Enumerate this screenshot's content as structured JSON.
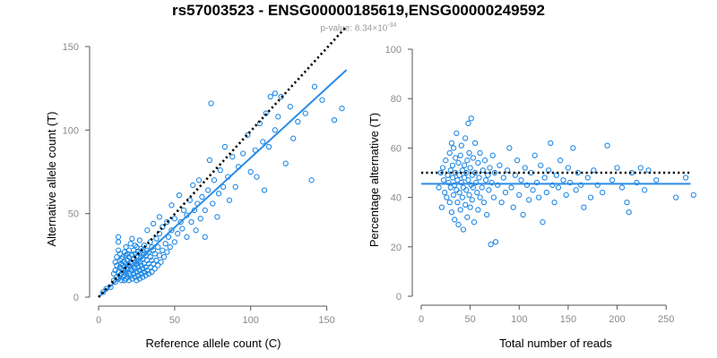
{
  "header": {
    "title": "rs57003523 - ENSG00000185619,ENSG00000249592",
    "pvalue_prefix": "p-value: 8.34×10",
    "pvalue_exp": "-34"
  },
  "colors": {
    "points": "#1E88E5",
    "fit": "#2B8CE6",
    "reference": "#000000"
  },
  "chart_data": [
    {
      "type": "scatter",
      "title": "",
      "xlabel": "Reference allele count (C)",
      "ylabel": "Alternative allele count (T)",
      "xlim": [
        0,
        165
      ],
      "ylim": [
        0,
        150
      ],
      "xticks": [
        "0",
        "50",
        "100",
        "150"
      ],
      "yticks": [
        "0",
        "50",
        "100",
        "150"
      ],
      "reference_line": {
        "style": "dotted",
        "x": [
          0,
          163
        ],
        "y": [
          0,
          162
        ]
      },
      "fit_line": {
        "style": "solid",
        "x": [
          0,
          163
        ],
        "y": [
          0,
          136
        ]
      },
      "points": [
        [
          3,
          3
        ],
        [
          5,
          5
        ],
        [
          8,
          6
        ],
        [
          10,
          10
        ],
        [
          10,
          14
        ],
        [
          11,
          9
        ],
        [
          11,
          16
        ],
        [
          11,
          21
        ],
        [
          12,
          12
        ],
        [
          12,
          19
        ],
        [
          12,
          24
        ],
        [
          13,
          11
        ],
        [
          13,
          15
        ],
        [
          13,
          28
        ],
        [
          13,
          33
        ],
        [
          13,
          36
        ],
        [
          14,
          13
        ],
        [
          14,
          18
        ],
        [
          14,
          22
        ],
        [
          14,
          26
        ],
        [
          15,
          10
        ],
        [
          15,
          14
        ],
        [
          15,
          17
        ],
        [
          15,
          20
        ],
        [
          15,
          23
        ],
        [
          16,
          12
        ],
        [
          16,
          16
        ],
        [
          16,
          19
        ],
        [
          16,
          24
        ],
        [
          17,
          10
        ],
        [
          17,
          13
        ],
        [
          17,
          18
        ],
        [
          17,
          21
        ],
        [
          17,
          27
        ],
        [
          18,
          11
        ],
        [
          18,
          15
        ],
        [
          18,
          20
        ],
        [
          18,
          25
        ],
        [
          18,
          30
        ],
        [
          19,
          12
        ],
        [
          19,
          17
        ],
        [
          19,
          22
        ],
        [
          19,
          26
        ],
        [
          20,
          10
        ],
        [
          20,
          14
        ],
        [
          20,
          19
        ],
        [
          20,
          24
        ],
        [
          20,
          28
        ],
        [
          21,
          13
        ],
        [
          21,
          17
        ],
        [
          21,
          21
        ],
        [
          21,
          32
        ],
        [
          22,
          11
        ],
        [
          22,
          16
        ],
        [
          22,
          20
        ],
        [
          22,
          25
        ],
        [
          22,
          35
        ],
        [
          23,
          14
        ],
        [
          23,
          18
        ],
        [
          23,
          23
        ],
        [
          23,
          28
        ],
        [
          24,
          12
        ],
        [
          24,
          17
        ],
        [
          24,
          21
        ],
        [
          24,
          26
        ],
        [
          24,
          31
        ],
        [
          25,
          10
        ],
        [
          25,
          15
        ],
        [
          25,
          20
        ],
        [
          25,
          24
        ],
        [
          25,
          30
        ],
        [
          26,
          13
        ],
        [
          26,
          18
        ],
        [
          26,
          22
        ],
        [
          26,
          27
        ],
        [
          27,
          11
        ],
        [
          27,
          16
        ],
        [
          27,
          21
        ],
        [
          27,
          26
        ],
        [
          27,
          34
        ],
        [
          28,
          14
        ],
        [
          28,
          19
        ],
        [
          28,
          24
        ],
        [
          28,
          29
        ],
        [
          29,
          12
        ],
        [
          29,
          17
        ],
        [
          29,
          23
        ],
        [
          29,
          28
        ],
        [
          30,
          15
        ],
        [
          30,
          20
        ],
        [
          30,
          26
        ],
        [
          30,
          31
        ],
        [
          31,
          13
        ],
        [
          31,
          18
        ],
        [
          31,
          25
        ],
        [
          32,
          16
        ],
        [
          32,
          22
        ],
        [
          32,
          28
        ],
        [
          32,
          40
        ],
        [
          33,
          14
        ],
        [
          33,
          20
        ],
        [
          33,
          27
        ],
        [
          34,
          18
        ],
        [
          34,
          24
        ],
        [
          34,
          33
        ],
        [
          35,
          15
        ],
        [
          35,
          22
        ],
        [
          35,
          30
        ],
        [
          36,
          20
        ],
        [
          36,
          28
        ],
        [
          36,
          44
        ],
        [
          37,
          17
        ],
        [
          37,
          26
        ],
        [
          38,
          22
        ],
        [
          38,
          35
        ],
        [
          39,
          19
        ],
        [
          39,
          30
        ],
        [
          40,
          25
        ],
        [
          40,
          38
        ],
        [
          40,
          48
        ],
        [
          41,
          21
        ],
        [
          42,
          28
        ],
        [
          42,
          42
        ],
        [
          43,
          24
        ],
        [
          44,
          32
        ],
        [
          45,
          27
        ],
        [
          45,
          45
        ],
        [
          46,
          36
        ],
        [
          47,
          30
        ],
        [
          48,
          40
        ],
        [
          48,
          55
        ],
        [
          50,
          33
        ],
        [
          50,
          47
        ],
        [
          52,
          38
        ],
        [
          53,
          61
        ],
        [
          54,
          45
        ],
        [
          55,
          41
        ],
        [
          56,
          52
        ],
        [
          58,
          36
        ],
        [
          58,
          49
        ],
        [
          60,
          58
        ],
        [
          61,
          45
        ],
        [
          62,
          67
        ],
        [
          63,
          52
        ],
        [
          64,
          40
        ],
        [
          65,
          56
        ],
        [
          66,
          70
        ],
        [
          67,
          47
        ],
        [
          68,
          60
        ],
        [
          70,
          36
        ],
        [
          70,
          52
        ],
        [
          72,
          64
        ],
        [
          73,
          82
        ],
        [
          74,
          116
        ],
        [
          75,
          56
        ],
        [
          76,
          70
        ],
        [
          78,
          48
        ],
        [
          79,
          62
        ],
        [
          80,
          76
        ],
        [
          82,
          66
        ],
        [
          83,
          90
        ],
        [
          85,
          72
        ],
        [
          86,
          58
        ],
        [
          88,
          84
        ],
        [
          90,
          66
        ],
        [
          92,
          78
        ],
        [
          95,
          86
        ],
        [
          98,
          97
        ],
        [
          100,
          75
        ],
        [
          103,
          88
        ],
        [
          104,
          72
        ],
        [
          106,
          104
        ],
        [
          108,
          93
        ],
        [
          109,
          64
        ],
        [
          110,
          110
        ],
        [
          112,
          90
        ],
        [
          113,
          120
        ],
        [
          116,
          100
        ],
        [
          118,
          108
        ],
        [
          120,
          120
        ],
        [
          123,
          80
        ],
        [
          126,
          114
        ],
        [
          128,
          95
        ],
        [
          131,
          105
        ],
        [
          136,
          110
        ],
        [
          140,
          70
        ],
        [
          142,
          126
        ],
        [
          147,
          118
        ],
        [
          155,
          106
        ],
        [
          160,
          113
        ],
        [
          116,
          122
        ]
      ]
    },
    {
      "type": "scatter",
      "title": "",
      "xlabel": "Total number of reads",
      "ylabel": "Percentage alternative (T)",
      "xlim": [
        0,
        280
      ],
      "ylim": [
        0,
        100
      ],
      "xticks": [
        "0",
        "50",
        "100",
        "150",
        "200",
        "250"
      ],
      "yticks": [
        "0",
        "20",
        "40",
        "60",
        "80",
        "100"
      ],
      "reference_line": {
        "style": "dotted",
        "x": [
          0,
          275
        ],
        "y": [
          50,
          50
        ]
      },
      "fit_line": {
        "style": "solid",
        "x": [
          0,
          275
        ],
        "y": [
          45.5,
          45.5
        ]
      },
      "points": [
        [
          18,
          44
        ],
        [
          20,
          50
        ],
        [
          21,
          36
        ],
        [
          22,
          52
        ],
        [
          23,
          47
        ],
        [
          24,
          42
        ],
        [
          25,
          55
        ],
        [
          26,
          40
        ],
        [
          27,
          49
        ],
        [
          28,
          46
        ],
        [
          29,
          58
        ],
        [
          29,
          38
        ],
        [
          30,
          51
        ],
        [
          30,
          44
        ],
        [
          31,
          62
        ],
        [
          31,
          34
        ],
        [
          32,
          48
        ],
        [
          32,
          53
        ],
        [
          33,
          41
        ],
        [
          33,
          60
        ],
        [
          34,
          45
        ],
        [
          34,
          31
        ],
        [
          35,
          50
        ],
        [
          35,
          56
        ],
        [
          36,
          43
        ],
        [
          36,
          66
        ],
        [
          37,
          47
        ],
        [
          37,
          38
        ],
        [
          38,
          54
        ],
        [
          38,
          29
        ],
        [
          39,
          49
        ],
        [
          39,
          42
        ],
        [
          40,
          57
        ],
        [
          40,
          35
        ],
        [
          41,
          46
        ],
        [
          41,
          61
        ],
        [
          42,
          51
        ],
        [
          42,
          40
        ],
        [
          43,
          44
        ],
        [
          43,
          27
        ],
        [
          44,
          53
        ],
        [
          44,
          48
        ],
        [
          45,
          37
        ],
        [
          45,
          64
        ],
        [
          46,
          50
        ],
        [
          46,
          43
        ],
        [
          47,
          55
        ],
        [
          47,
          32
        ],
        [
          48,
          47
        ],
        [
          48,
          70
        ],
        [
          49,
          41
        ],
        [
          49,
          58
        ],
        [
          50,
          52
        ],
        [
          50,
          36
        ],
        [
          51,
          45
        ],
        [
          51,
          72
        ],
        [
          52,
          49
        ],
        [
          52,
          39
        ],
        [
          53,
          56
        ],
        [
          53,
          44
        ],
        [
          54,
          30
        ],
        [
          55,
          50
        ],
        [
          55,
          62
        ],
        [
          56,
          46
        ],
        [
          57,
          42
        ],
        [
          58,
          54
        ],
        [
          58,
          35
        ],
        [
          59,
          48
        ],
        [
          60,
          40
        ],
        [
          60,
          58
        ],
        [
          62,
          44
        ],
        [
          63,
          51
        ],
        [
          64,
          38
        ],
        [
          65,
          55
        ],
        [
          66,
          47
        ],
        [
          67,
          33
        ],
        [
          68,
          49
        ],
        [
          69,
          43
        ],
        [
          70,
          52
        ],
        [
          71,
          21
        ],
        [
          72,
          46
        ],
        [
          73,
          57
        ],
        [
          74,
          40
        ],
        [
          75,
          50
        ],
        [
          76,
          22
        ],
        [
          78,
          45
        ],
        [
          80,
          53
        ],
        [
          82,
          38
        ],
        [
          84,
          48
        ],
        [
          86,
          42
        ],
        [
          88,
          51
        ],
        [
          90,
          60
        ],
        [
          92,
          44
        ],
        [
          94,
          36
        ],
        [
          96,
          49
        ],
        [
          98,
          55
        ],
        [
          100,
          41
        ],
        [
          102,
          47
        ],
        [
          104,
          33
        ],
        [
          106,
          52
        ],
        [
          108,
          45
        ],
        [
          110,
          39
        ],
        [
          112,
          50
        ],
        [
          114,
          43
        ],
        [
          116,
          57
        ],
        [
          118,
          46
        ],
        [
          120,
          40
        ],
        [
          122,
          53
        ],
        [
          124,
          30
        ],
        [
          126,
          48
        ],
        [
          128,
          42
        ],
        [
          130,
          51
        ],
        [
          132,
          62
        ],
        [
          134,
          45
        ],
        [
          136,
          38
        ],
        [
          138,
          49
        ],
        [
          140,
          44
        ],
        [
          142,
          55
        ],
        [
          145,
          47
        ],
        [
          148,
          41
        ],
        [
          150,
          52
        ],
        [
          152,
          46
        ],
        [
          155,
          60
        ],
        [
          158,
          43
        ],
        [
          160,
          50
        ],
        [
          163,
          45
        ],
        [
          166,
          36
        ],
        [
          170,
          48
        ],
        [
          173,
          40
        ],
        [
          176,
          51
        ],
        [
          180,
          45
        ],
        [
          185,
          42
        ],
        [
          190,
          61
        ],
        [
          195,
          47
        ],
        [
          200,
          52
        ],
        [
          205,
          44
        ],
        [
          210,
          38
        ],
        [
          212,
          34
        ],
        [
          215,
          50
        ],
        [
          220,
          46
        ],
        [
          224,
          52
        ],
        [
          228,
          43
        ],
        [
          232,
          51
        ],
        [
          240,
          47
        ],
        [
          260,
          40
        ],
        [
          270,
          48
        ],
        [
          278,
          41
        ]
      ]
    }
  ]
}
